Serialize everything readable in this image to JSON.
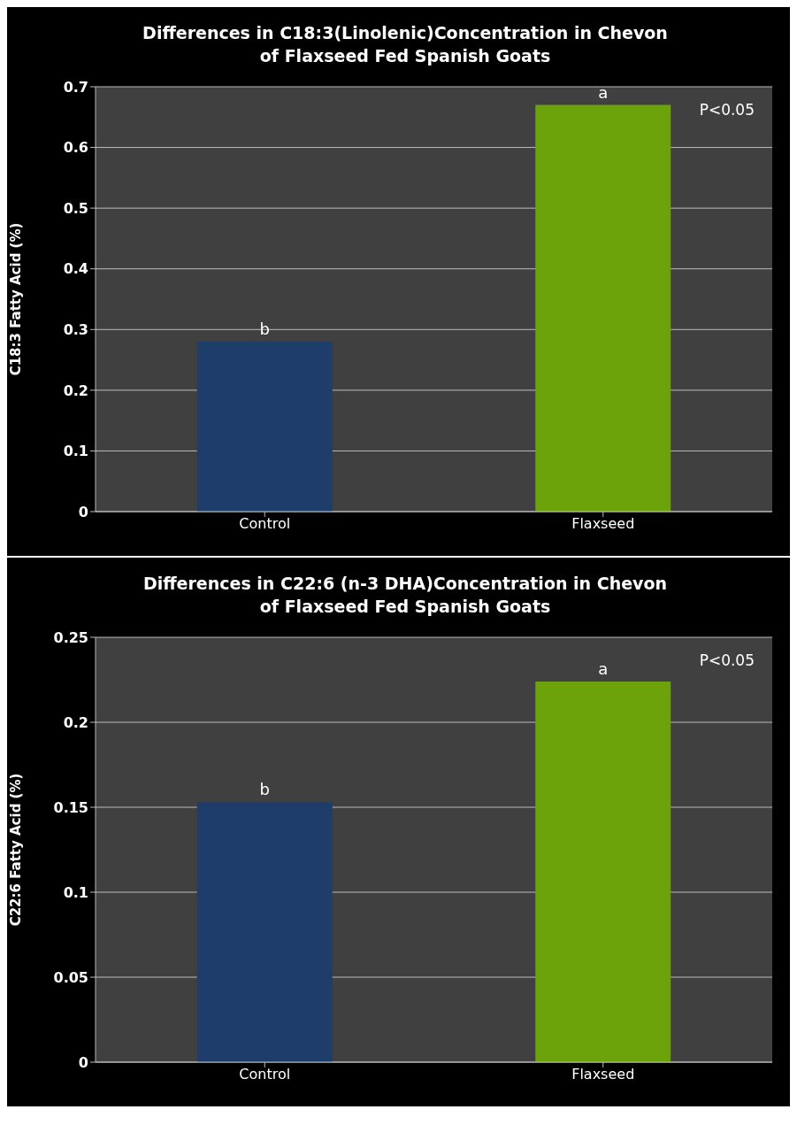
{
  "chart_data": [
    {
      "type": "bar",
      "title": "Differences in C18:3(Linolenic)Concentration in Chevon of Flaxseed Fed  Spanish Goats",
      "ylabel": "C18:3  Fatty Acid (%)",
      "categories": [
        "Control",
        "Flaxseed"
      ],
      "values": [
        0.28,
        0.67
      ],
      "colors": [
        "#1f3d6b",
        "#6ca30a"
      ],
      "ylim": [
        0,
        0.7
      ],
      "yticks": [
        0,
        0.1,
        0.2,
        0.3,
        0.4,
        0.5,
        0.6,
        0.7
      ],
      "grid": "y",
      "annotations": [
        {
          "text": "b",
          "x": "Control",
          "y": 0.28
        },
        {
          "text": "a",
          "x": "Flaxseed",
          "y": 0.67
        },
        "P<0.05"
      ]
    },
    {
      "type": "bar",
      "title": "Differences in C22:6 (n-3  DHA)Concentration in Chevon of Flaxseed Fed  Spanish Goats",
      "ylabel": "C22:6  Fatty Acid (%)",
      "categories": [
        "Control",
        "Flaxseed"
      ],
      "values": [
        0.153,
        0.224
      ],
      "colors": [
        "#1f3d6b",
        "#6ca30a"
      ],
      "ylim": [
        0,
        0.25
      ],
      "yticks": [
        0,
        0.05,
        0.1,
        0.15,
        0.2,
        0.25
      ],
      "grid": "y",
      "annotations": [
        {
          "text": "b",
          "x": "Control",
          "y": 0.153
        },
        {
          "text": "a",
          "x": "Flaxseed",
          "y": 0.224
        },
        "P<0.05"
      ]
    }
  ]
}
